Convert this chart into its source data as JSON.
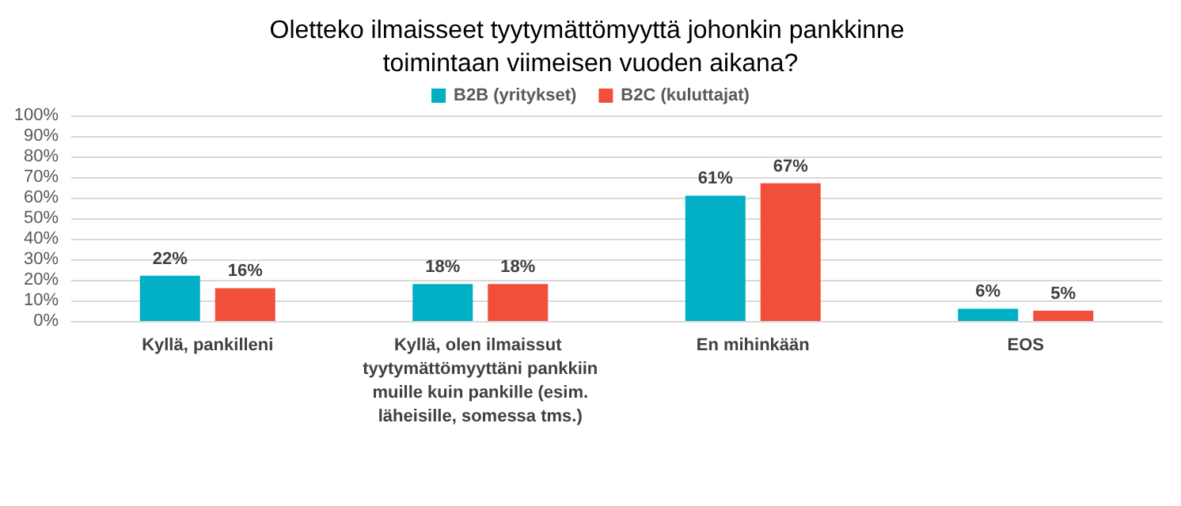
{
  "chart_data": {
    "type": "bar",
    "title": "Oletteko ilmaisseet tyytymättömyyttä johonkin pankkinne toimintaan viimeisen vuoden aikana?",
    "categories": [
      "Kyllä, pankilleni",
      "Kyllä, olen ilmaissut tyytymättömyyttäni pankkiin muille kuin pankille (esim. läheisille, somessa tms.)",
      "En mihinkään",
      "EOS"
    ],
    "series": [
      {
        "name": "B2B (yritykset)",
        "color": "#00afc4",
        "values": [
          22,
          18,
          61,
          6
        ],
        "value_labels": [
          "22%",
          "18%",
          "61%",
          "6%"
        ]
      },
      {
        "name": "B2C (kuluttajat)",
        "color": "#f24f3b",
        "values": [
          16,
          18,
          67,
          5
        ],
        "value_labels": [
          "16%",
          "18%",
          "67%",
          "5%"
        ]
      }
    ],
    "ylim": [
      0,
      100
    ],
    "yticks": [
      {
        "value": 0,
        "label": "0%"
      },
      {
        "value": 10,
        "label": "10%"
      },
      {
        "value": 20,
        "label": "20%"
      },
      {
        "value": 30,
        "label": "30%"
      },
      {
        "value": 40,
        "label": "40%"
      },
      {
        "value": 50,
        "label": "50%"
      },
      {
        "value": 60,
        "label": "60%"
      },
      {
        "value": 70,
        "label": "70%"
      },
      {
        "value": 80,
        "label": "80%"
      },
      {
        "value": 90,
        "label": "90%"
      },
      {
        "value": 100,
        "label": "100%"
      }
    ],
    "grid": "y",
    "legend": "top"
  }
}
